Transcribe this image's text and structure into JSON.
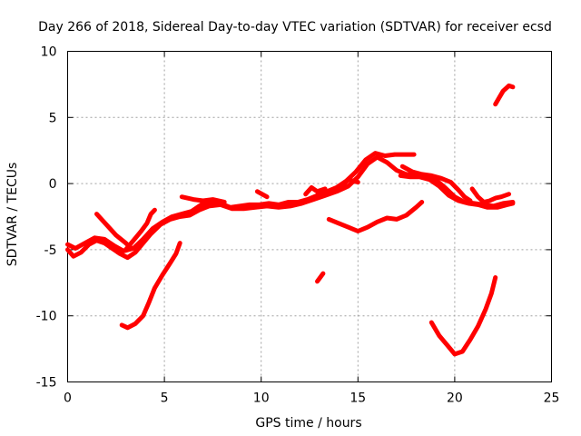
{
  "chart_data": {
    "type": "scatter",
    "title": "Day 266 of 2018, Sidereal Day-to-day VTEC variation (SDTVAR) for receiver ecsd",
    "xlabel": "GPS time / hours",
    "ylabel": "SDTVAR / TECUs",
    "xlim": [
      0,
      25
    ],
    "ylim": [
      -15,
      10
    ],
    "xticks": [
      0,
      5,
      10,
      15,
      20,
      25
    ],
    "yticks": [
      -15,
      -10,
      -5,
      0,
      5,
      10
    ],
    "xtick_labels": [
      "0",
      "5",
      "10",
      "15",
      "20",
      "25"
    ],
    "ytick_labels": [
      "-15",
      "-10",
      "-5",
      "0",
      "5",
      "10"
    ],
    "grid": true,
    "legend": "none",
    "color": "#ff0000",
    "series": [
      {
        "points": [
          [
            0,
            -5.0
          ],
          [
            0.3,
            -5.5
          ],
          [
            0.7,
            -5.2
          ],
          [
            1.1,
            -4.6
          ],
          [
            1.5,
            -4.3
          ],
          [
            1.9,
            -4.5
          ],
          [
            2.3,
            -4.9
          ],
          [
            2.7,
            -5.3
          ],
          [
            3.1,
            -5.6
          ],
          [
            3.5,
            -5.2
          ],
          [
            3.9,
            -4.5
          ],
          [
            4.3,
            -3.8
          ],
          [
            4.8,
            -3.1
          ],
          [
            5.3,
            -2.7
          ],
          [
            5.8,
            -2.5
          ],
          [
            6.3,
            -2.4
          ],
          [
            6.8,
            -2.0
          ],
          [
            7.3,
            -1.7
          ],
          [
            7.9,
            -1.6
          ],
          [
            8.5,
            -1.9
          ],
          [
            9.1,
            -1.9
          ],
          [
            9.7,
            -1.8
          ],
          [
            10.3,
            -1.7
          ],
          [
            10.9,
            -1.8
          ],
          [
            11.5,
            -1.7
          ],
          [
            12.1,
            -1.5
          ],
          [
            12.7,
            -1.2
          ],
          [
            13.3,
            -0.9
          ],
          [
            13.9,
            -0.6
          ],
          [
            14.5,
            -0.2
          ],
          [
            15.0,
            0.5
          ],
          [
            15.5,
            1.5
          ],
          [
            16.0,
            2.0
          ],
          [
            16.5,
            1.6
          ],
          [
            17.0,
            1.0
          ],
          [
            17.5,
            0.7
          ],
          [
            18.0,
            0.6
          ],
          [
            18.5,
            0.5
          ],
          [
            19.0,
            0.3
          ],
          [
            19.5,
            -0.3
          ],
          [
            20.0,
            -1.0
          ],
          [
            20.5,
            -1.4
          ],
          [
            21.0,
            -1.5
          ],
          [
            21.5,
            -1.6
          ],
          [
            22.0,
            -1.7
          ],
          [
            22.5,
            -1.5
          ],
          [
            23.0,
            -1.4
          ]
        ]
      },
      {
        "points": [
          [
            0,
            -4.6
          ],
          [
            0.4,
            -4.9
          ],
          [
            0.9,
            -4.5
          ],
          [
            1.4,
            -4.1
          ],
          [
            1.9,
            -4.2
          ],
          [
            2.4,
            -4.7
          ],
          [
            2.9,
            -5.1
          ],
          [
            3.4,
            -4.9
          ],
          [
            3.9,
            -4.2
          ],
          [
            4.4,
            -3.4
          ],
          [
            4.9,
            -2.9
          ],
          [
            5.4,
            -2.5
          ],
          [
            5.9,
            -2.3
          ],
          [
            6.4,
            -2.1
          ],
          [
            6.9,
            -1.6
          ],
          [
            7.4,
            -1.4
          ],
          [
            7.9,
            -1.5
          ],
          [
            8.4,
            -1.8
          ],
          [
            8.9,
            -1.7
          ],
          [
            9.4,
            -1.6
          ],
          [
            9.9,
            -1.6
          ],
          [
            10.4,
            -1.5
          ],
          [
            10.9,
            -1.6
          ],
          [
            11.4,
            -1.4
          ],
          [
            11.9,
            -1.4
          ],
          [
            12.4,
            -1.2
          ],
          [
            12.9,
            -0.9
          ],
          [
            13.4,
            -0.6
          ],
          [
            13.9,
            -0.3
          ],
          [
            14.4,
            0.2
          ],
          [
            14.9,
            0.9
          ],
          [
            15.4,
            1.8
          ],
          [
            15.9,
            2.3
          ],
          [
            16.4,
            2.1
          ],
          [
            16.9,
            2.2
          ],
          [
            17.4,
            2.2
          ],
          [
            17.9,
            2.2
          ]
        ]
      },
      {
        "points": [
          [
            1.5,
            -2.3
          ],
          [
            2.0,
            -3.1
          ],
          [
            2.5,
            -3.9
          ],
          [
            3.0,
            -4.5
          ],
          [
            3.3,
            -4.9
          ]
        ]
      },
      {
        "points": [
          [
            3.0,
            -5.0
          ],
          [
            3.4,
            -4.3
          ],
          [
            3.8,
            -3.6
          ],
          [
            4.1,
            -3.0
          ],
          [
            4.3,
            -2.3
          ],
          [
            4.5,
            -2.0
          ]
        ]
      },
      {
        "points": [
          [
            5.9,
            -1.0
          ],
          [
            6.5,
            -1.2
          ],
          [
            7.0,
            -1.3
          ],
          [
            7.5,
            -1.2
          ],
          [
            8.1,
            -1.4
          ]
        ]
      },
      {
        "points": [
          [
            9.8,
            -0.6
          ],
          [
            10.3,
            -1.0
          ]
        ]
      },
      {
        "points": [
          [
            12.3,
            -0.8
          ],
          [
            12.6,
            -0.3
          ],
          [
            12.9,
            -0.6
          ],
          [
            13.3,
            -0.4
          ]
        ]
      },
      {
        "points": [
          [
            14.0,
            -0.5
          ],
          [
            14.5,
            0.3
          ],
          [
            15.0,
            0.1
          ]
        ]
      },
      {
        "points": [
          [
            17.2,
            0.6
          ],
          [
            17.7,
            0.5
          ],
          [
            18.2,
            0.5
          ],
          [
            18.7,
            0.3
          ],
          [
            19.2,
            -0.2
          ],
          [
            19.7,
            -0.9
          ],
          [
            20.2,
            -1.3
          ],
          [
            20.7,
            -1.5
          ],
          [
            21.2,
            -1.6
          ],
          [
            21.7,
            -1.8
          ],
          [
            22.2,
            -1.8
          ],
          [
            22.7,
            -1.6
          ],
          [
            23.0,
            -1.5
          ]
        ]
      },
      {
        "points": [
          [
            17.3,
            1.3
          ],
          [
            17.8,
            0.9
          ],
          [
            18.3,
            0.7
          ],
          [
            18.8,
            0.6
          ],
          [
            19.3,
            0.4
          ],
          [
            19.8,
            0.1
          ],
          [
            20.2,
            -0.5
          ],
          [
            20.5,
            -1.0
          ],
          [
            20.8,
            -1.3
          ]
        ]
      },
      {
        "points": [
          [
            20.9,
            -0.4
          ],
          [
            21.2,
            -1.0
          ],
          [
            21.5,
            -1.4
          ],
          [
            21.8,
            -1.3
          ],
          [
            22.1,
            -1.1
          ],
          [
            22.4,
            -1.0
          ],
          [
            22.8,
            -0.8
          ]
        ]
      },
      {
        "points": [
          [
            13.5,
            -2.7
          ],
          [
            14.0,
            -3.0
          ],
          [
            14.5,
            -3.3
          ],
          [
            15.0,
            -3.6
          ],
          [
            15.5,
            -3.3
          ],
          [
            16.0,
            -2.9
          ],
          [
            16.5,
            -2.6
          ],
          [
            17.0,
            -2.7
          ],
          [
            17.5,
            -2.4
          ],
          [
            18.0,
            -1.8
          ],
          [
            18.3,
            -1.4
          ]
        ]
      },
      {
        "points": [
          [
            2.8,
            -10.7
          ],
          [
            3.1,
            -10.9
          ],
          [
            3.5,
            -10.6
          ],
          [
            3.9,
            -10.0
          ],
          [
            4.2,
            -9.0
          ],
          [
            4.5,
            -7.9
          ],
          [
            4.9,
            -6.9
          ],
          [
            5.3,
            -6.0
          ],
          [
            5.6,
            -5.3
          ],
          [
            5.8,
            -4.5
          ]
        ]
      },
      {
        "points": [
          [
            12.9,
            -7.4
          ],
          [
            13.2,
            -6.8
          ]
        ]
      },
      {
        "points": [
          [
            18.8,
            -10.5
          ],
          [
            19.2,
            -11.5
          ],
          [
            19.6,
            -12.2
          ],
          [
            20.0,
            -12.9
          ],
          [
            20.4,
            -12.7
          ],
          [
            20.8,
            -11.8
          ],
          [
            21.2,
            -10.8
          ],
          [
            21.6,
            -9.5
          ],
          [
            21.9,
            -8.3
          ],
          [
            22.1,
            -7.1
          ]
        ]
      },
      {
        "points": [
          [
            22.1,
            6.0
          ],
          [
            22.3,
            6.5
          ],
          [
            22.5,
            7.0
          ],
          [
            22.8,
            7.4
          ],
          [
            23.0,
            7.3
          ]
        ]
      }
    ]
  }
}
